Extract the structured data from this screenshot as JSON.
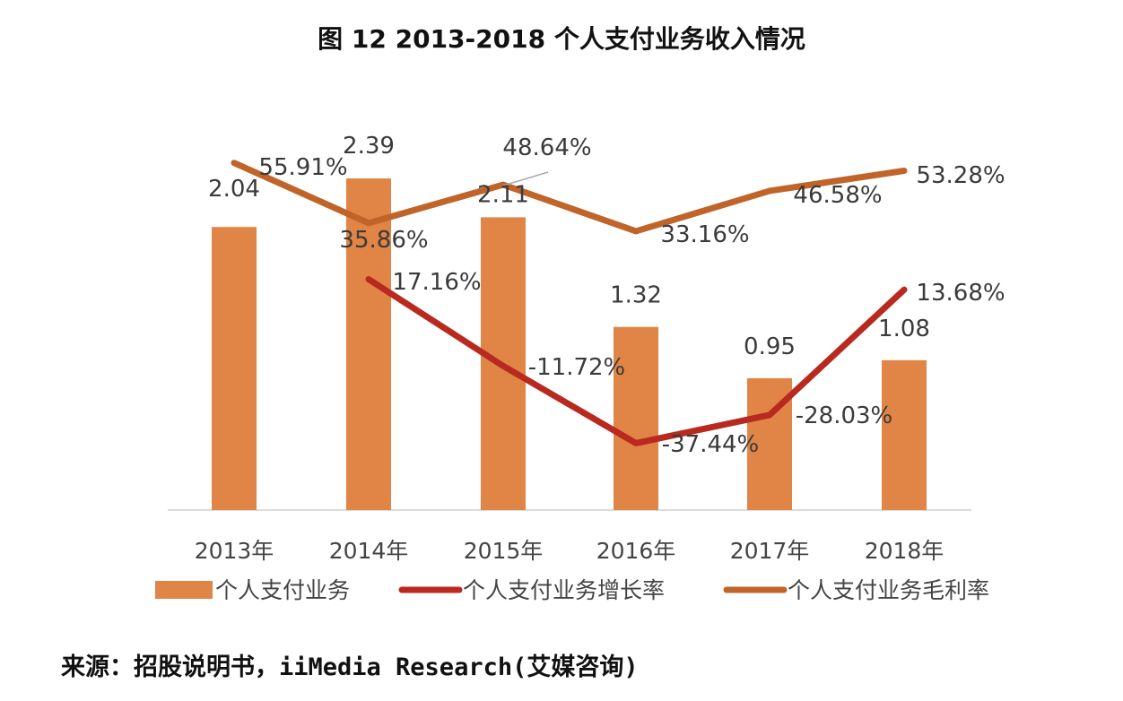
{
  "title": "图 12  2013-2018 个人支付业务收入情况",
  "source": "来源：招股说明书，iiMedia Research(艾媒咨询)",
  "chart_data": {
    "type": "bar+line",
    "title": "图 12  2013-2018 个人支付业务收入情况",
    "categories": [
      "2013年",
      "2014年",
      "2015年",
      "2016年",
      "2017年",
      "2018年"
    ],
    "series": [
      {
        "name": "个人支付业务",
        "type": "bar",
        "color": "#E08545",
        "values": [
          2.04,
          2.39,
          2.11,
          1.32,
          0.95,
          1.08
        ],
        "labels": [
          "2.04",
          "2.39",
          "2.11",
          "1.32",
          "0.95",
          "1.08"
        ]
      },
      {
        "name": "个人支付业务增长率",
        "type": "line",
        "color": "#B82A20",
        "values": [
          null,
          17.16,
          -11.72,
          -37.44,
          -28.03,
          13.68
        ],
        "labels": [
          "",
          "17.16%",
          "-11.72%",
          "-37.44%",
          "-28.03%",
          "13.68%"
        ]
      },
      {
        "name": "个人支付业务毛利率",
        "type": "line",
        "color": "#C0642A",
        "values": [
          55.91,
          35.86,
          48.64,
          33.16,
          46.58,
          53.28
        ],
        "labels": [
          "55.91%",
          "35.86%",
          "48.64%",
          "33.16%",
          "46.58%",
          "53.28%"
        ]
      }
    ],
    "legend": "bottom",
    "grid": false
  }
}
